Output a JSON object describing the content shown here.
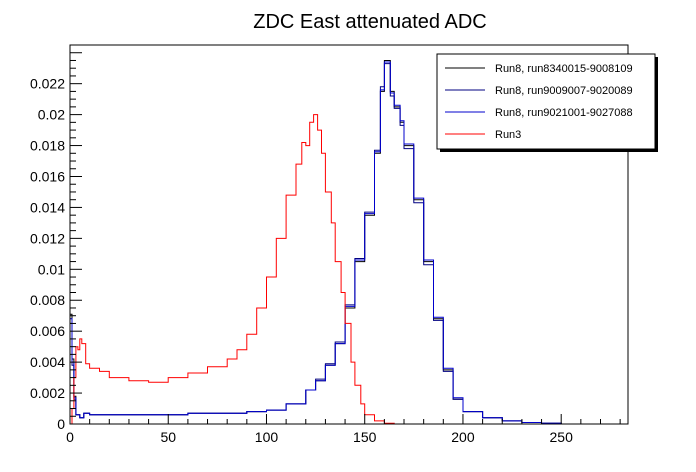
{
  "chart_data": {
    "type": "line",
    "title": "ZDC East attenuated ADC",
    "xlabel": "",
    "ylabel": "",
    "xlim": [
      0,
      284
    ],
    "ylim": [
      0,
      0.0245
    ],
    "x_ticks": [
      0,
      50,
      100,
      150,
      200,
      250
    ],
    "x_tick_labels": [
      "0",
      "50",
      "100",
      "150",
      "200",
      "250"
    ],
    "y_ticks": [
      0,
      0.002,
      0.004,
      0.006,
      0.008,
      0.01,
      0.012,
      0.014,
      0.016,
      0.018,
      0.02,
      0.022
    ],
    "y_tick_labels": [
      "0",
      "0.002",
      "0.004",
      "0.006",
      "0.008",
      "0.01",
      "0.012",
      "0.014",
      "0.016",
      "0.018",
      "0.02",
      "0.022"
    ],
    "grid": false,
    "legend_position": "top-right",
    "series": [
      {
        "name": "Run8, run8340015-9008109",
        "color": "#000000",
        "points": [
          [
            0,
            0.0071
          ],
          [
            1,
            0.0042
          ],
          [
            2,
            0.0018
          ],
          [
            3,
            0.0006
          ],
          [
            5,
            0.0004
          ],
          [
            7,
            0.0007
          ],
          [
            10,
            0.0006
          ],
          [
            20,
            0.0006
          ],
          [
            40,
            0.0006
          ],
          [
            60,
            0.0007
          ],
          [
            80,
            0.0007
          ],
          [
            90,
            0.0008
          ],
          [
            100,
            0.0009
          ],
          [
            110,
            0.0013
          ],
          [
            120,
            0.0022
          ],
          [
            125,
            0.0028
          ],
          [
            130,
            0.0038
          ],
          [
            135,
            0.0052
          ],
          [
            140,
            0.0075
          ],
          [
            145,
            0.0105
          ],
          [
            150,
            0.0135
          ],
          [
            155,
            0.0175
          ],
          [
            158,
            0.0215
          ],
          [
            160,
            0.0235
          ],
          [
            163,
            0.0215
          ],
          [
            165,
            0.0205
          ],
          [
            168,
            0.0195
          ],
          [
            170,
            0.018
          ],
          [
            175,
            0.0145
          ],
          [
            180,
            0.0105
          ],
          [
            185,
            0.0068
          ],
          [
            190,
            0.0035
          ],
          [
            195,
            0.0016
          ],
          [
            200,
            0.0008
          ],
          [
            210,
            0.0004
          ],
          [
            220,
            0.0002
          ],
          [
            230,
            0.0001
          ],
          [
            240,
            5e-05
          ],
          [
            250,
            0.0
          ],
          [
            284,
            0.0
          ]
        ]
      },
      {
        "name": "Run8, run9009007-9020089",
        "color": "#000080",
        "points": [
          [
            0,
            0.0065
          ],
          [
            1,
            0.0038
          ],
          [
            2,
            0.0016
          ],
          [
            3,
            0.0006
          ],
          [
            5,
            0.0004
          ],
          [
            7,
            0.0007
          ],
          [
            10,
            0.0006
          ],
          [
            20,
            0.0006
          ],
          [
            40,
            0.0006
          ],
          [
            60,
            0.0007
          ],
          [
            80,
            0.0007
          ],
          [
            90,
            0.0008
          ],
          [
            100,
            0.0009
          ],
          [
            110,
            0.0013
          ],
          [
            120,
            0.0022
          ],
          [
            125,
            0.0029
          ],
          [
            130,
            0.0039
          ],
          [
            135,
            0.0053
          ],
          [
            140,
            0.0077
          ],
          [
            145,
            0.0107
          ],
          [
            150,
            0.0137
          ],
          [
            155,
            0.0177
          ],
          [
            158,
            0.0218
          ],
          [
            160,
            0.0233
          ],
          [
            163,
            0.0212
          ],
          [
            165,
            0.0204
          ],
          [
            168,
            0.0193
          ],
          [
            170,
            0.0178
          ],
          [
            175,
            0.0143
          ],
          [
            180,
            0.0103
          ],
          [
            185,
            0.0067
          ],
          [
            190,
            0.0034
          ],
          [
            195,
            0.0016
          ],
          [
            200,
            0.0008
          ],
          [
            210,
            0.0004
          ],
          [
            220,
            0.0002
          ],
          [
            230,
            0.0001
          ],
          [
            240,
            5e-05
          ],
          [
            250,
            0.0
          ],
          [
            284,
            0.0
          ]
        ]
      },
      {
        "name": "Run8, run9021001-9027088",
        "color": "#0000cc",
        "points": [
          [
            0,
            0.0068
          ],
          [
            1,
            0.004
          ],
          [
            2,
            0.0017
          ],
          [
            3,
            0.0006
          ],
          [
            5,
            0.0004
          ],
          [
            7,
            0.0007
          ],
          [
            10,
            0.0006
          ],
          [
            20,
            0.0006
          ],
          [
            40,
            0.0006
          ],
          [
            60,
            0.0007
          ],
          [
            80,
            0.0007
          ],
          [
            90,
            0.0008
          ],
          [
            100,
            0.0009
          ],
          [
            110,
            0.0013
          ],
          [
            120,
            0.0022
          ],
          [
            125,
            0.0028
          ],
          [
            130,
            0.0038
          ],
          [
            135,
            0.0052
          ],
          [
            140,
            0.0076
          ],
          [
            145,
            0.0106
          ],
          [
            150,
            0.0136
          ],
          [
            155,
            0.0176
          ],
          [
            158,
            0.0216
          ],
          [
            160,
            0.0234
          ],
          [
            163,
            0.0214
          ],
          [
            165,
            0.0206
          ],
          [
            168,
            0.0196
          ],
          [
            170,
            0.0181
          ],
          [
            175,
            0.0146
          ],
          [
            180,
            0.0106
          ],
          [
            185,
            0.0069
          ],
          [
            190,
            0.0036
          ],
          [
            195,
            0.0017
          ],
          [
            200,
            0.0008
          ],
          [
            210,
            0.0004
          ],
          [
            220,
            0.0002
          ],
          [
            230,
            0.0001
          ],
          [
            240,
            5e-05
          ],
          [
            250,
            0.0
          ],
          [
            284,
            0.0
          ]
        ]
      },
      {
        "name": "Run3",
        "color": "#ff0000",
        "points": [
          [
            0,
            0.0
          ],
          [
            1,
            0.001
          ],
          [
            2,
            0.003
          ],
          [
            3,
            0.005
          ],
          [
            4,
            0.0048
          ],
          [
            5,
            0.0055
          ],
          [
            6,
            0.0052
          ],
          [
            8,
            0.0039
          ],
          [
            10,
            0.0036
          ],
          [
            15,
            0.0034
          ],
          [
            20,
            0.003
          ],
          [
            30,
            0.0028
          ],
          [
            40,
            0.0027
          ],
          [
            50,
            0.003
          ],
          [
            60,
            0.0033
          ],
          [
            70,
            0.0037
          ],
          [
            80,
            0.0042
          ],
          [
            85,
            0.0048
          ],
          [
            90,
            0.0058
          ],
          [
            95,
            0.0075
          ],
          [
            100,
            0.0095
          ],
          [
            105,
            0.012
          ],
          [
            110,
            0.0148
          ],
          [
            115,
            0.0168
          ],
          [
            118,
            0.0182
          ],
          [
            120,
            0.018
          ],
          [
            122,
            0.0195
          ],
          [
            124,
            0.02
          ],
          [
            126,
            0.019
          ],
          [
            128,
            0.0175
          ],
          [
            130,
            0.015
          ],
          [
            133,
            0.013
          ],
          [
            135,
            0.0105
          ],
          [
            138,
            0.0085
          ],
          [
            140,
            0.0065
          ],
          [
            143,
            0.004
          ],
          [
            145,
            0.0025
          ],
          [
            148,
            0.0013
          ],
          [
            150,
            0.0006
          ],
          [
            155,
            0.0002
          ],
          [
            160,
            5e-05
          ],
          [
            165,
            0.0
          ],
          [
            284,
            0.0
          ]
        ]
      }
    ]
  }
}
